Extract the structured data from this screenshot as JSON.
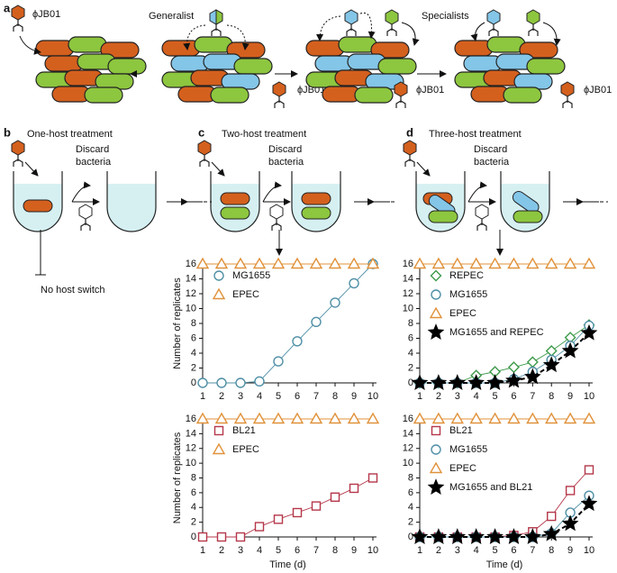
{
  "panels": {
    "a": {
      "label": "a",
      "phage_labels": [
        "ϕJB01",
        "ϕJB01",
        "ϕJB01",
        "ϕJB01"
      ],
      "generalist": "Generalist",
      "specialists": "Specialists"
    },
    "b": {
      "label": "b",
      "title": "One-host treatment",
      "discard": [
        "Discard",
        "bacteria"
      ],
      "result": "No host switch"
    },
    "c": {
      "label": "c",
      "title": "Two-host treatment",
      "discard": [
        "Discard",
        "bacteria"
      ]
    },
    "d": {
      "label": "d",
      "title": "Three-host treatment",
      "discard": [
        "Discard",
        "bacteria"
      ]
    }
  },
  "chart_data": [
    {
      "type": "line",
      "ylabel": "Number of replicates",
      "x": [
        1,
        2,
        3,
        4,
        5,
        6,
        7,
        8,
        9,
        10
      ],
      "xlim": [
        1,
        10
      ],
      "xticks": [
        1,
        2,
        3,
        4,
        5,
        6,
        7,
        8,
        9,
        10
      ],
      "ylim": [
        0,
        16
      ],
      "yticks": [
        0,
        2,
        4,
        6,
        8,
        10,
        12,
        14,
        16
      ],
      "legend": "upper left",
      "series": [
        {
          "name": "MG1655",
          "color": "#4f8fa6",
          "marker": "circle",
          "values": [
            0,
            0,
            0,
            0.2,
            2.9,
            5.6,
            8.2,
            10.8,
            13.4,
            16
          ]
        },
        {
          "name": "EPEC",
          "color": "#e0913a",
          "marker": "triangle",
          "values": [
            16,
            16,
            16,
            16,
            16,
            16,
            16,
            16,
            16,
            16
          ]
        }
      ]
    },
    {
      "type": "line",
      "ylabel": "Number of replicates",
      "xlabel": "Time (d)",
      "x": [
        1,
        2,
        3,
        4,
        5,
        6,
        7,
        8,
        9,
        10
      ],
      "xlim": [
        1,
        10
      ],
      "xticks": [
        1,
        2,
        3,
        4,
        5,
        6,
        7,
        8,
        9,
        10
      ],
      "ylim": [
        0,
        16
      ],
      "yticks": [
        0,
        2,
        4,
        6,
        8,
        10,
        12,
        14,
        16
      ],
      "legend": "upper left",
      "series": [
        {
          "name": "BL21",
          "color": "#b5374a",
          "marker": "square",
          "values": [
            0,
            0,
            0,
            1.4,
            2.4,
            3.3,
            4.2,
            5.4,
            6.6,
            8
          ]
        },
        {
          "name": "EPEC",
          "color": "#e0913a",
          "marker": "triangle",
          "values": [
            16,
            16,
            16,
            16,
            16,
            16,
            16,
            16,
            16,
            16
          ]
        }
      ]
    },
    {
      "type": "line",
      "x": [
        1,
        2,
        3,
        4,
        5,
        6,
        7,
        8,
        9,
        10
      ],
      "xlim": [
        1,
        10
      ],
      "xticks": [
        1,
        2,
        3,
        4,
        5,
        6,
        7,
        8,
        9,
        10
      ],
      "ylim": [
        0,
        16
      ],
      "yticks": [
        0,
        2,
        4,
        6,
        8,
        10,
        12,
        14,
        16
      ],
      "legend": "upper left",
      "series": [
        {
          "name": "REPEC",
          "color": "#3d9a4a",
          "marker": "diamond",
          "values": [
            0,
            0,
            0,
            1,
            1.5,
            2.1,
            2.8,
            4.3,
            6.1,
            7.8
          ]
        },
        {
          "name": "MG1655",
          "color": "#4f8fa6",
          "marker": "circle",
          "values": [
            0,
            0,
            0,
            0,
            0,
            0.5,
            1.5,
            3.1,
            5,
            7.7
          ]
        },
        {
          "name": "EPEC",
          "color": "#e0913a",
          "marker": "triangle",
          "values": [
            16,
            16,
            16,
            16,
            16,
            16,
            16,
            16,
            16,
            16
          ]
        },
        {
          "name": "MG1655 and REPEC",
          "color": "#000000",
          "marker": "star",
          "dashed": true,
          "values": [
            0,
            0,
            0,
            0,
            0,
            0.3,
            0.8,
            2.4,
            4.3,
            6.7
          ]
        }
      ]
    },
    {
      "type": "line",
      "xlabel": "Time (d)",
      "x": [
        1,
        2,
        3,
        4,
        5,
        6,
        7,
        8,
        9,
        10
      ],
      "xlim": [
        1,
        10
      ],
      "xticks": [
        1,
        2,
        3,
        4,
        5,
        6,
        7,
        8,
        9,
        10
      ],
      "ylim": [
        0,
        16
      ],
      "yticks": [
        0,
        2,
        4,
        6,
        8,
        10,
        12,
        14,
        16
      ],
      "legend": "upper left",
      "series": [
        {
          "name": "BL21",
          "color": "#b5374a",
          "marker": "square",
          "values": [
            0,
            0,
            0,
            0,
            0,
            0.2,
            0.7,
            2.8,
            6.3,
            9.1
          ]
        },
        {
          "name": "MG1655",
          "color": "#4f8fa6",
          "marker": "circle",
          "values": [
            0,
            0,
            0,
            0,
            0,
            0,
            0,
            0.5,
            3.3,
            5.6
          ]
        },
        {
          "name": "EPEC",
          "color": "#e0913a",
          "marker": "triangle",
          "values": [
            16,
            16,
            16,
            16,
            16,
            16,
            16,
            16,
            16,
            16
          ]
        },
        {
          "name": "MG1655 and BL21",
          "color": "#000000",
          "marker": "star",
          "dashed": true,
          "values": [
            0,
            0,
            0,
            0,
            0,
            0,
            0,
            0.4,
            1.8,
            4.5
          ]
        }
      ]
    }
  ]
}
